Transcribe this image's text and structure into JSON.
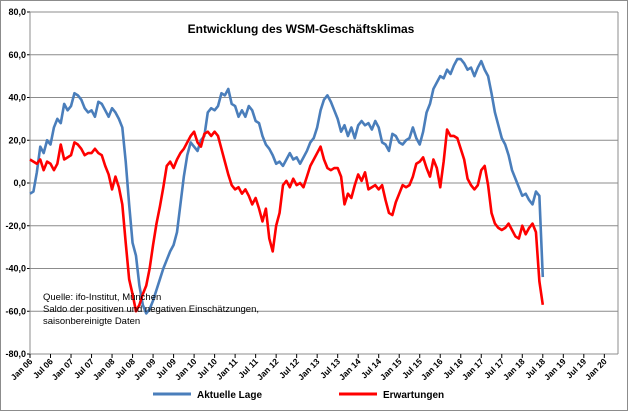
{
  "chart_data": {
    "type": "line",
    "title": "Entwicklung des WSM-Geschäftsklimas",
    "xlabel": "",
    "ylabel": "",
    "ylim": [
      -80,
      80
    ],
    "yticks": [
      "80,0",
      "60,0",
      "40,0",
      "20,0",
      "0,0",
      "-20,0",
      "-40,0",
      "-60,0",
      "-80,0"
    ],
    "ytick_values": [
      80,
      60,
      40,
      20,
      0,
      -20,
      -40,
      -60,
      -80
    ],
    "x_range": [
      0,
      172
    ],
    "xtick_labels": [
      "Jan 06",
      "Jul 06",
      "Jan 07",
      "Jul 07",
      "Jan 08",
      "Jul 08",
      "Jan 09",
      "Jul 09",
      "Jan 10",
      "Jul 10",
      "Jan 11",
      "Jul 11",
      "Jan 12",
      "Jul 12",
      "Jan 13",
      "Jul 13",
      "Jan 14",
      "Jul 14",
      "Jan 15",
      "Jul 15",
      "Jan 16",
      "Jul 16",
      "Jan 17",
      "Jul 17",
      "Jan 18",
      "Jul 18",
      "Jan 19",
      "Jul 19",
      "Jan 20"
    ],
    "xtick_positions": [
      0,
      6,
      12,
      18,
      24,
      30,
      36,
      42,
      48,
      54,
      60,
      66,
      72,
      78,
      84,
      90,
      96,
      102,
      108,
      114,
      120,
      126,
      132,
      138,
      144,
      150,
      156,
      162,
      168
    ],
    "grid": true,
    "legend_position": "bottom",
    "source_lines": [
      "Quelle: ifo-Institut, München",
      "Saldo der positiven und negativen Einschätzungen,",
      "saisonbereinigte Daten"
    ],
    "series": [
      {
        "name": "Aktuelle Lage",
        "color": "#4a7ebb",
        "points": [
          [
            0,
            -5
          ],
          [
            1,
            -4
          ],
          [
            2,
            5
          ],
          [
            3,
            17
          ],
          [
            4,
            14
          ],
          [
            5,
            20
          ],
          [
            6,
            18
          ],
          [
            7,
            26
          ],
          [
            8,
            30
          ],
          [
            9,
            28
          ],
          [
            10,
            37
          ],
          [
            11,
            34
          ],
          [
            12,
            36
          ],
          [
            13,
            42
          ],
          [
            14,
            41
          ],
          [
            15,
            39
          ],
          [
            16,
            35
          ],
          [
            17,
            33
          ],
          [
            18,
            34
          ],
          [
            19,
            31
          ],
          [
            20,
            38
          ],
          [
            21,
            37
          ],
          [
            22,
            34
          ],
          [
            23,
            31
          ],
          [
            24,
            35
          ],
          [
            25,
            33
          ],
          [
            26,
            30
          ],
          [
            27,
            26
          ],
          [
            28,
            10
          ],
          [
            29,
            -10
          ],
          [
            30,
            -28
          ],
          [
            31,
            -34
          ],
          [
            32,
            -48
          ],
          [
            33,
            -57
          ],
          [
            34,
            -61
          ],
          [
            35,
            -59
          ],
          [
            36,
            -55
          ],
          [
            37,
            -50
          ],
          [
            38,
            -45
          ],
          [
            39,
            -40
          ],
          [
            40,
            -36
          ],
          [
            41,
            -32
          ],
          [
            42,
            -29
          ],
          [
            43,
            -23
          ],
          [
            44,
            -10
          ],
          [
            45,
            3
          ],
          [
            46,
            13
          ],
          [
            47,
            19
          ],
          [
            48,
            17
          ],
          [
            49,
            15
          ],
          [
            50,
            20
          ],
          [
            51,
            22
          ],
          [
            52,
            33
          ],
          [
            53,
            35
          ],
          [
            54,
            34
          ],
          [
            55,
            36
          ],
          [
            56,
            42
          ],
          [
            57,
            41
          ],
          [
            58,
            44
          ],
          [
            59,
            37
          ],
          [
            60,
            36
          ],
          [
            61,
            31
          ],
          [
            62,
            34
          ],
          [
            63,
            31
          ],
          [
            64,
            36
          ],
          [
            65,
            34
          ],
          [
            66,
            29
          ],
          [
            67,
            28
          ],
          [
            68,
            22
          ],
          [
            69,
            18
          ],
          [
            70,
            16
          ],
          [
            71,
            13
          ],
          [
            72,
            9
          ],
          [
            73,
            10
          ],
          [
            74,
            8
          ],
          [
            75,
            11
          ],
          [
            76,
            14
          ],
          [
            77,
            11
          ],
          [
            78,
            12
          ],
          [
            79,
            9
          ],
          [
            80,
            12
          ],
          [
            81,
            15
          ],
          [
            82,
            19
          ],
          [
            83,
            21
          ],
          [
            84,
            26
          ],
          [
            85,
            34
          ],
          [
            86,
            39
          ],
          [
            87,
            41
          ],
          [
            88,
            38
          ],
          [
            89,
            34
          ],
          [
            90,
            30
          ],
          [
            91,
            24
          ],
          [
            92,
            27
          ],
          [
            93,
            22
          ],
          [
            94,
            26
          ],
          [
            95,
            21
          ],
          [
            96,
            27
          ],
          [
            97,
            29
          ],
          [
            98,
            27
          ],
          [
            99,
            28
          ],
          [
            100,
            25
          ],
          [
            101,
            29
          ],
          [
            102,
            26
          ],
          [
            103,
            19
          ],
          [
            104,
            18
          ],
          [
            105,
            15
          ],
          [
            106,
            23
          ],
          [
            107,
            22
          ],
          [
            108,
            19
          ],
          [
            109,
            18
          ],
          [
            110,
            20
          ],
          [
            111,
            21
          ],
          [
            112,
            26
          ],
          [
            113,
            21
          ],
          [
            114,
            18
          ],
          [
            115,
            24
          ],
          [
            116,
            33
          ],
          [
            117,
            37
          ],
          [
            118,
            44
          ],
          [
            119,
            47
          ],
          [
            120,
            50
          ],
          [
            121,
            49
          ],
          [
            122,
            53
          ],
          [
            123,
            51
          ],
          [
            124,
            55
          ],
          [
            125,
            58
          ],
          [
            126,
            58
          ],
          [
            127,
            56
          ],
          [
            128,
            53
          ],
          [
            129,
            54
          ],
          [
            130,
            50
          ],
          [
            131,
            54
          ],
          [
            132,
            57
          ],
          [
            133,
            53
          ],
          [
            134,
            50
          ],
          [
            135,
            42
          ],
          [
            136,
            33
          ],
          [
            137,
            27
          ],
          [
            138,
            21
          ],
          [
            139,
            18
          ],
          [
            140,
            13
          ],
          [
            141,
            6
          ],
          [
            142,
            2
          ],
          [
            143,
            -2
          ],
          [
            144,
            -6
          ],
          [
            145,
            -5
          ],
          [
            146,
            -8
          ],
          [
            147,
            -10
          ],
          [
            148,
            -4
          ],
          [
            149,
            -6
          ],
          [
            150,
            -44
          ]
        ]
      },
      {
        "name": "Erwartungen",
        "color": "#ff0000",
        "points": [
          [
            0,
            11
          ],
          [
            1,
            10
          ],
          [
            2,
            9
          ],
          [
            3,
            11
          ],
          [
            4,
            6
          ],
          [
            5,
            10
          ],
          [
            6,
            9
          ],
          [
            7,
            6
          ],
          [
            8,
            9
          ],
          [
            9,
            18
          ],
          [
            10,
            11
          ],
          [
            11,
            12
          ],
          [
            12,
            13
          ],
          [
            13,
            19
          ],
          [
            14,
            18
          ],
          [
            15,
            16
          ],
          [
            16,
            13
          ],
          [
            17,
            14
          ],
          [
            18,
            14
          ],
          [
            19,
            16
          ],
          [
            20,
            14
          ],
          [
            21,
            13
          ],
          [
            22,
            8
          ],
          [
            23,
            4
          ],
          [
            24,
            -3
          ],
          [
            25,
            3
          ],
          [
            26,
            -2
          ],
          [
            27,
            -10
          ],
          [
            28,
            -28
          ],
          [
            29,
            -45
          ],
          [
            30,
            -52
          ],
          [
            31,
            -60
          ],
          [
            32,
            -57
          ],
          [
            33,
            -52
          ],
          [
            34,
            -48
          ],
          [
            35,
            -40
          ],
          [
            36,
            -29
          ],
          [
            37,
            -19
          ],
          [
            38,
            -11
          ],
          [
            39,
            -2
          ],
          [
            40,
            8
          ],
          [
            41,
            10
          ],
          [
            42,
            7
          ],
          [
            43,
            11
          ],
          [
            44,
            14
          ],
          [
            45,
            16
          ],
          [
            46,
            19
          ],
          [
            47,
            22
          ],
          [
            48,
            24
          ],
          [
            49,
            19
          ],
          [
            50,
            17
          ],
          [
            51,
            23
          ],
          [
            52,
            24
          ],
          [
            53,
            22
          ],
          [
            54,
            24
          ],
          [
            55,
            22
          ],
          [
            56,
            16
          ],
          [
            57,
            10
          ],
          [
            58,
            4
          ],
          [
            59,
            -1
          ],
          [
            60,
            -3
          ],
          [
            61,
            -2
          ],
          [
            62,
            -5
          ],
          [
            63,
            -3
          ],
          [
            64,
            -6
          ],
          [
            65,
            -10
          ],
          [
            66,
            -7
          ],
          [
            67,
            -12
          ],
          [
            68,
            -18
          ],
          [
            69,
            -12
          ],
          [
            70,
            -26
          ],
          [
            71,
            -32
          ],
          [
            72,
            -20
          ],
          [
            73,
            -14
          ],
          [
            74,
            -1
          ],
          [
            75,
            1
          ],
          [
            76,
            -2
          ],
          [
            77,
            2
          ],
          [
            78,
            -1
          ],
          [
            79,
            0
          ],
          [
            80,
            -2
          ],
          [
            81,
            3
          ],
          [
            82,
            8
          ],
          [
            83,
            11
          ],
          [
            84,
            14
          ],
          [
            85,
            17
          ],
          [
            86,
            11
          ],
          [
            87,
            7
          ],
          [
            88,
            6
          ],
          [
            89,
            7
          ],
          [
            90,
            7
          ],
          [
            91,
            3
          ],
          [
            92,
            -10
          ],
          [
            93,
            -5
          ],
          [
            94,
            -7
          ],
          [
            95,
            -1
          ],
          [
            96,
            4
          ],
          [
            97,
            1
          ],
          [
            98,
            5
          ],
          [
            99,
            -3
          ],
          [
            100,
            -2
          ],
          [
            101,
            -1
          ],
          [
            102,
            -3
          ],
          [
            103,
            -1
          ],
          [
            104,
            -8
          ],
          [
            105,
            -14
          ],
          [
            106,
            -15
          ],
          [
            107,
            -9
          ],
          [
            108,
            -5
          ],
          [
            109,
            -1
          ],
          [
            110,
            -2
          ],
          [
            111,
            -1
          ],
          [
            112,
            3
          ],
          [
            113,
            9
          ],
          [
            114,
            10
          ],
          [
            115,
            12
          ],
          [
            116,
            7
          ],
          [
            117,
            3
          ],
          [
            118,
            11
          ],
          [
            119,
            7
          ],
          [
            120,
            -2
          ],
          [
            121,
            10
          ],
          [
            122,
            25
          ],
          [
            123,
            22
          ],
          [
            124,
            22
          ],
          [
            125,
            21
          ],
          [
            126,
            16
          ],
          [
            127,
            11
          ],
          [
            128,
            2
          ],
          [
            129,
            -1
          ],
          [
            130,
            -3
          ],
          [
            131,
            -1
          ],
          [
            132,
            6
          ],
          [
            133,
            8
          ],
          [
            134,
            -1
          ],
          [
            135,
            -14
          ],
          [
            136,
            -19
          ],
          [
            137,
            -21
          ],
          [
            138,
            -22
          ],
          [
            139,
            -21
          ],
          [
            140,
            -19
          ],
          [
            141,
            -22
          ],
          [
            142,
            -25
          ],
          [
            143,
            -26
          ],
          [
            144,
            -20
          ],
          [
            145,
            -24
          ],
          [
            146,
            -21
          ],
          [
            147,
            -19
          ],
          [
            148,
            -23
          ],
          [
            149,
            -46
          ],
          [
            150,
            -57
          ]
        ]
      }
    ]
  }
}
